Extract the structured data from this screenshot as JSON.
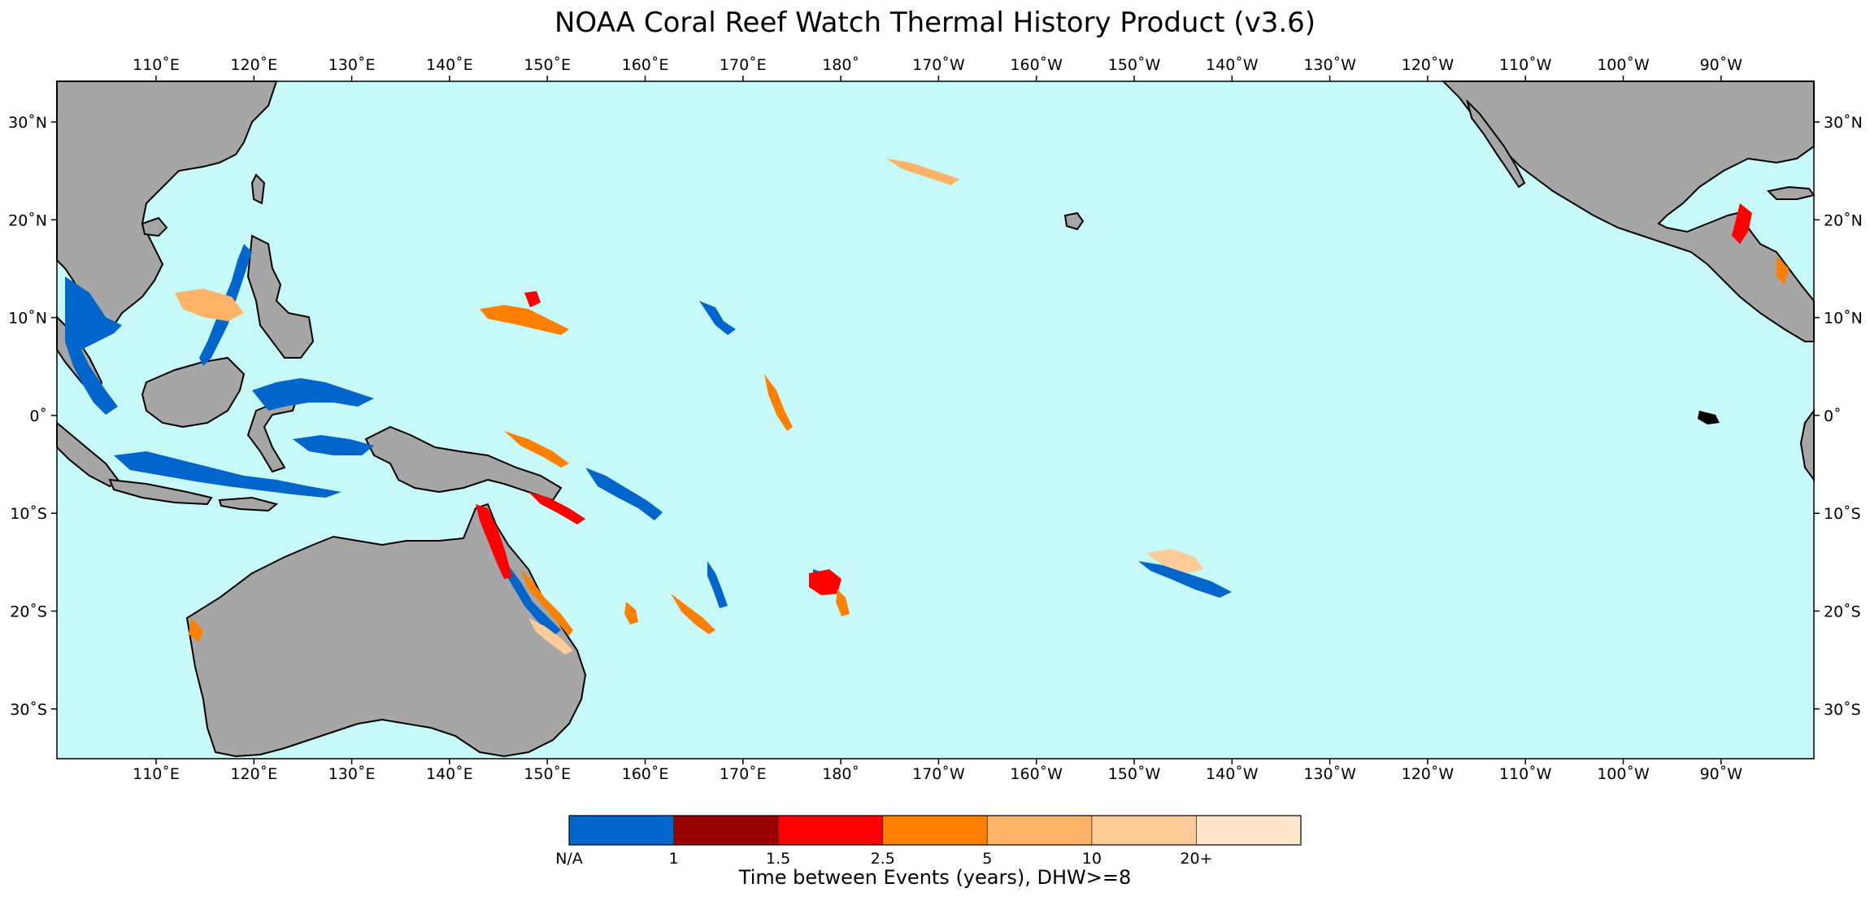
{
  "title": "NOAA Coral Reef Watch Thermal History Product (v3.6)",
  "map": {
    "ocean_color": "#c7f9f9",
    "land_color": "#a6a6a6",
    "coast_color": "#000000",
    "lon_ticks": [
      "110˚E",
      "120˚E",
      "130˚E",
      "140˚E",
      "150˚E",
      "160˚E",
      "170˚E",
      "180˚",
      "170˚W",
      "160˚W",
      "150˚W",
      "140˚W",
      "130˚W",
      "120˚W",
      "110˚W",
      "100˚W",
      "90˚W"
    ],
    "lat_ticks": [
      "30˚N",
      "20˚N",
      "10˚N",
      "0˚",
      "10˚S",
      "20˚S",
      "30˚S"
    ]
  },
  "colorbar": {
    "label": "Time between Events (years), DHW>=8",
    "tick_labels": [
      "N/A",
      "1",
      "1.5",
      "2.5",
      "5",
      "10",
      "20+"
    ],
    "colors": [
      "#0066cc",
      "#990000",
      "#ff0000",
      "#ff8000",
      "#ffb366",
      "#ffcc99",
      "#ffe6cc"
    ]
  }
}
